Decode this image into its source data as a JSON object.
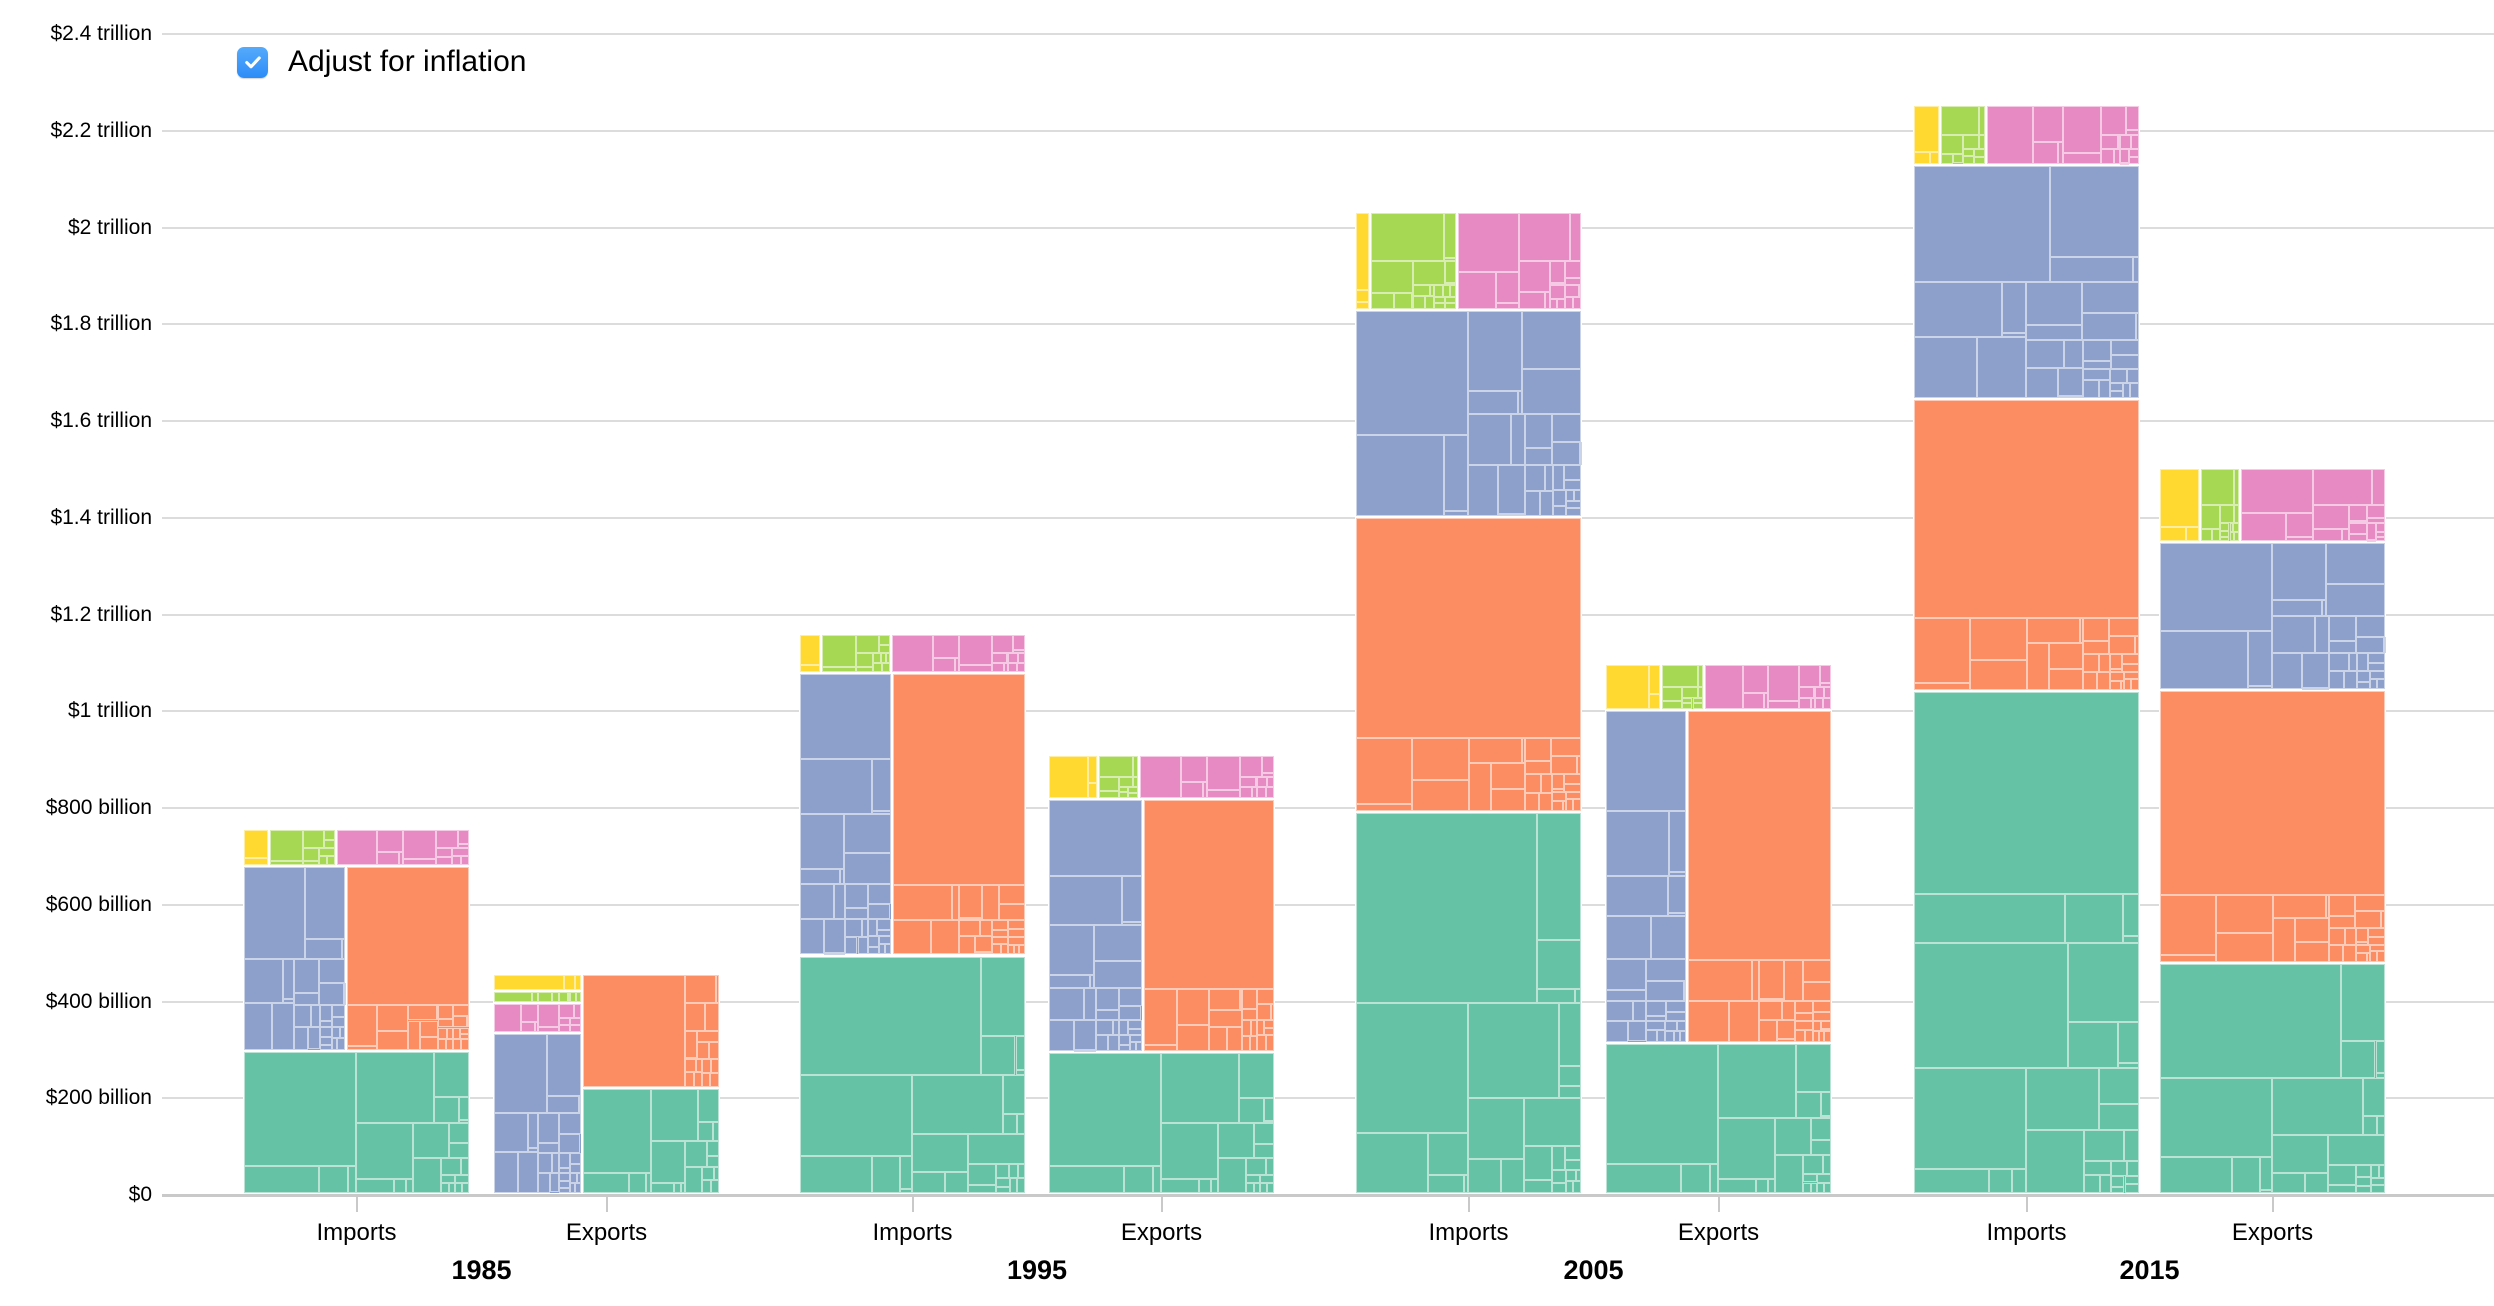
{
  "controls": {
    "adjust_for_inflation": {
      "label": "Adjust for inflation",
      "checked": true,
      "checkbox_color": "#3b99fc",
      "checkmark_color": "#ffffff"
    }
  },
  "colors": {
    "teal": "#66c2a5",
    "orange": "#fc8d62",
    "purple": "#8da0cb",
    "pink": "#e78ac3",
    "lime": "#a6d854",
    "yellow": "#ffd92f",
    "gridline": "#dcdcdc",
    "axis": "#c9c9c9",
    "text": "#000000"
  },
  "y_axis": {
    "ticks": [
      {
        "value": 0,
        "label": "$0"
      },
      {
        "value": 200,
        "label": "$200 billion"
      },
      {
        "value": 400,
        "label": "$400 billion"
      },
      {
        "value": 600,
        "label": "$600 billion"
      },
      {
        "value": 800,
        "label": "$800 billion"
      },
      {
        "value": 1000,
        "label": "$1 trillion"
      },
      {
        "value": 1200,
        "label": "$1.2 trillion"
      },
      {
        "value": 1400,
        "label": "$1.4 trillion"
      },
      {
        "value": 1600,
        "label": "$1.6 trillion"
      },
      {
        "value": 1800,
        "label": "$1.8 trillion"
      },
      {
        "value": 2000,
        "label": "$2 trillion"
      },
      {
        "value": 2200,
        "label": "$2.2 trillion"
      },
      {
        "value": 2400,
        "label": "$2.4 trillion"
      }
    ]
  },
  "chart_data": {
    "type": "bar",
    "subtype": "treemap-stacked-bars",
    "title": "",
    "xlabel": "",
    "ylabel": "",
    "unit": "US dollars (billions), inflation adjusted",
    "ylim": [
      0,
      2400
    ],
    "grid": true,
    "legend": "none visible; categories identified by color",
    "categories": [
      "teal",
      "orange",
      "purple",
      "pink",
      "lime",
      "yellow"
    ],
    "groups": [
      {
        "year": "1985",
        "bars": [
          {
            "label": "Imports",
            "total": 755,
            "values": {
              "teal": 295,
              "orange": 209,
              "purple": 173,
              "pink": 46,
              "lime": 23,
              "yellow": 9
            },
            "layout": {
              "type": "rows",
              "rows": [
                [
                  "yellow",
                  "lime",
                  "pink"
                ],
                [
                  "purple",
                  "orange"
                ],
                [
                  "teal"
                ]
              ]
            }
          },
          {
            "label": "Exports",
            "total": 455,
            "values": {
              "teal": 133,
              "orange": 143,
              "purple": 131,
              "pink": 24,
              "lime": 10,
              "yellow": 14
            },
            "layout": {
              "type": "columns",
              "columns": [
                [
                  "yellow",
                  "lime",
                  "pink",
                  "purple"
                ],
                [
                  "orange",
                  "teal"
                ]
              ]
            }
          }
        ]
      },
      {
        "year": "1995",
        "bars": [
          {
            "label": "Imports",
            "total": 1158,
            "values": {
              "teal": 493,
              "orange": 345,
              "purple": 239,
              "pink": 48,
              "lime": 25,
              "yellow": 8
            },
            "layout": {
              "type": "rows",
              "rows": [
                [
                  "yellow",
                  "lime",
                  "pink"
                ],
                [
                  "purple",
                  "orange"
                ],
                [
                  "teal"
                ]
              ]
            }
          },
          {
            "label": "Exports",
            "total": 907,
            "values": {
              "teal": 293,
              "orange": 304,
              "purple": 220,
              "pink": 54,
              "lime": 16,
              "yellow": 20
            },
            "layout": {
              "type": "rows",
              "rows": [
                [
                  "yellow",
                  "lime",
                  "pink"
                ],
                [
                  "purple",
                  "orange"
                ],
                [
                  "teal"
                ]
              ]
            }
          }
        ]
      },
      {
        "year": "2005",
        "bars": [
          {
            "label": "Imports",
            "total": 2030,
            "values": {
              "teal": 790,
              "orange": 609,
              "purple": 428,
              "pink": 112,
              "lime": 78,
              "yellow": 13
            },
            "layout": {
              "type": "rows",
              "rows": [
                [
                  "yellow",
                  "lime",
                  "pink"
                ],
                [
                  "purple"
                ],
                [
                  "orange"
                ],
                [
                  "teal"
                ]
              ]
            }
          },
          {
            "label": "Exports",
            "total": 1095,
            "values": {
              "teal": 312,
              "orange": 441,
              "purple": 248,
              "pink": 53,
              "lime": 18,
              "yellow": 23
            },
            "layout": {
              "type": "rows",
              "rows": [
                [
                  "yellow",
                  "lime",
                  "pink"
                ],
                [
                  "purple",
                  "orange"
                ],
                [
                  "teal"
                ]
              ]
            }
          }
        ]
      },
      {
        "year": "2015",
        "bars": [
          {
            "label": "Imports",
            "total": 2252,
            "values": {
              "teal": 1039,
              "orange": 605,
              "purple": 483,
              "pink": 85,
              "lime": 25,
              "yellow": 15
            },
            "layout": {
              "type": "rows",
              "rows": [
                [
                  "yellow",
                  "lime",
                  "pink"
                ],
                [
                  "purple"
                ],
                [
                  "orange"
                ],
                [
                  "teal"
                ]
              ]
            }
          },
          {
            "label": "Exports",
            "total": 1501,
            "values": {
              "teal": 478,
              "orange": 563,
              "purple": 306,
              "pink": 99,
              "lime": 27,
              "yellow": 28
            },
            "layout": {
              "type": "rows",
              "rows": [
                [
                  "yellow",
                  "lime",
                  "pink"
                ],
                [
                  "purple"
                ],
                [
                  "orange"
                ],
                [
                  "teal"
                ]
              ]
            }
          }
        ]
      }
    ],
    "treemap_texture_weights": {
      "teal": [
        40,
        17,
        10,
        6.5,
        5,
        4,
        3.2,
        2.5,
        2,
        1.6,
        1.3,
        1.1,
        0.9,
        0.75,
        0.6,
        0.5,
        0.42,
        0.35,
        0.3,
        0.25,
        0.21,
        0.18,
        0.15,
        0.13,
        0.11,
        0.09,
        0.08,
        0.07,
        0.06,
        0.05
      ],
      "orange": [
        74,
        5.5,
        3.5,
        2.6,
        2,
        1.6,
        1.3,
        1.1,
        0.9,
        0.8,
        0.7,
        0.6,
        0.52,
        0.45,
        0.4,
        0.35,
        0.3,
        0.27,
        0.24,
        0.21,
        0.18,
        0.16,
        0.14,
        0.12,
        0.11,
        0.09,
        0.08,
        0.07,
        0.06,
        0.05
      ],
      "purple": [
        29,
        15,
        9,
        7,
        5.5,
        4.5,
        3.8,
        3.2,
        2.7,
        2.3,
        2,
        1.7,
        1.5,
        1.3,
        1.1,
        0.95,
        0.8,
        0.7,
        0.6,
        0.52,
        0.45,
        0.4,
        0.35,
        0.3,
        0.26,
        0.22,
        0.19,
        0.16,
        0.14,
        0.12,
        0.1,
        0.09,
        0.08,
        0.07,
        0.06
      ],
      "pink": [
        30,
        20,
        12,
        8,
        6,
        4.5,
        3.5,
        2.8,
        2.2,
        1.8,
        1.4,
        1.1,
        0.9,
        0.75,
        0.6,
        0.5,
        0.42,
        0.35,
        0.3,
        0.25,
        0.21,
        0.18,
        0.15,
        0.13,
        0.11,
        0.1
      ],
      "lime": [
        42,
        16,
        9,
        6,
        4.5,
        3.5,
        2.8,
        2.2,
        1.8,
        1.5,
        1.2,
        1,
        0.85,
        0.7,
        0.6,
        0.5,
        0.45,
        0.4,
        0.35,
        0.3,
        0.27,
        0.24,
        0.21,
        0.19,
        0.17,
        0.15
      ],
      "yellow": [
        80,
        13,
        7
      ]
    }
  },
  "x_axis": {
    "bar_labels": [
      "Imports",
      "Exports"
    ],
    "years": [
      "1985",
      "1995",
      "2005",
      "2015"
    ]
  }
}
